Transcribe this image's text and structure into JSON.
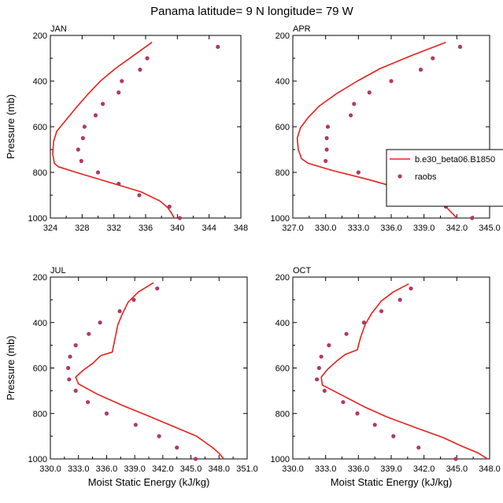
{
  "title": "Panama  latitude= 9 N longitude= 79 W",
  "colors": {
    "model": "#e8201c",
    "obs": "#b03a62",
    "frame": "#000000"
  },
  "legend": {
    "placement": "right of APR panel, overflowing figure edge",
    "entries": [
      {
        "label": "b.e30_beta06.B1850",
        "marker": "line",
        "color": "#e8201c"
      },
      {
        "label": "raobs",
        "marker": "dot",
        "color": "#b03a62"
      }
    ]
  },
  "chart_data": [
    {
      "type": "line",
      "title": "JAN",
      "xlabel": "",
      "ylabel": "Pressure (mb)",
      "xlim": [
        324,
        348
      ],
      "ylim": [
        1000,
        200
      ],
      "xticks": [
        324,
        328,
        332,
        336,
        340,
        344,
        348
      ],
      "xticklabels": [
        "324",
        "328",
        "332",
        "336",
        "340",
        "344",
        "348"
      ],
      "yticks": [
        200,
        400,
        600,
        800,
        1000
      ],
      "yticklabels": [
        "200",
        "400",
        "600",
        "800",
        "1000"
      ],
      "model": [
        [
          336.8,
          230
        ],
        [
          334.8,
          280
        ],
        [
          332.2,
          345
        ],
        [
          330.3,
          400
        ],
        [
          328.8,
          455
        ],
        [
          327.4,
          510
        ],
        [
          326.1,
          565
        ],
        [
          324.8,
          620
        ],
        [
          324.4,
          665
        ],
        [
          324.3,
          720
        ],
        [
          324.5,
          760
        ],
        [
          325.0,
          775
        ],
        [
          327.7,
          805
        ],
        [
          331.6,
          845
        ],
        [
          335.4,
          885
        ],
        [
          337.8,
          925
        ],
        [
          338.8,
          955
        ],
        [
          339.2,
          975
        ],
        [
          339.6,
          1000
        ]
      ],
      "obs": [
        [
          345.1,
          250
        ],
        [
          336.2,
          300
        ],
        [
          335.3,
          350
        ],
        [
          333.0,
          400
        ],
        [
          332.6,
          450
        ],
        [
          330.6,
          500
        ],
        [
          329.7,
          550
        ],
        [
          328.3,
          600
        ],
        [
          328.1,
          650
        ],
        [
          327.5,
          700
        ],
        [
          327.9,
          750
        ],
        [
          330.0,
          800
        ],
        [
          332.6,
          850
        ],
        [
          335.2,
          900
        ],
        [
          339.0,
          950
        ],
        [
          340.3,
          1000
        ]
      ]
    },
    {
      "type": "line",
      "title": "APR",
      "xlabel": "",
      "ylabel": "",
      "xlim": [
        327.0,
        345.0
      ],
      "ylim": [
        1000,
        200
      ],
      "xticks": [
        327,
        330,
        333,
        336,
        339,
        342,
        345
      ],
      "xticklabels": [
        "327.0",
        "330.0",
        "333.0",
        "336.0",
        "339.0",
        "342.0",
        "345.0"
      ],
      "yticks": [
        200,
        400,
        600,
        800,
        1000
      ],
      "yticklabels": [
        "200",
        "400",
        "600",
        "800",
        "1000"
      ],
      "model": [
        [
          341.0,
          230
        ],
        [
          338.0,
          285
        ],
        [
          335.0,
          345
        ],
        [
          332.9,
          400
        ],
        [
          331.0,
          455
        ],
        [
          329.4,
          510
        ],
        [
          328.4,
          560
        ],
        [
          327.7,
          605
        ],
        [
          327.4,
          650
        ],
        [
          327.5,
          700
        ],
        [
          327.8,
          740
        ],
        [
          328.4,
          760
        ],
        [
          330.5,
          790
        ],
        [
          333.8,
          830
        ],
        [
          336.8,
          870
        ],
        [
          339.3,
          910
        ],
        [
          341.0,
          950
        ],
        [
          341.5,
          975
        ],
        [
          342.0,
          1000
        ]
      ],
      "obs": [
        [
          342.3,
          250
        ],
        [
          339.8,
          300
        ],
        [
          338.7,
          350
        ],
        [
          336.0,
          400
        ],
        [
          334.0,
          450
        ],
        [
          332.6,
          500
        ],
        [
          332.3,
          550
        ],
        [
          330.2,
          600
        ],
        [
          330.1,
          650
        ],
        [
          330.1,
          700
        ],
        [
          330.0,
          750
        ],
        [
          333.0,
          800
        ],
        [
          335.8,
          850
        ],
        [
          338.3,
          900
        ],
        [
          341.0,
          950
        ],
        [
          343.4,
          1000
        ]
      ]
    },
    {
      "type": "line",
      "title": "JUL",
      "xlabel": "Moist Static Energy (kJ/kg)",
      "ylabel": "Pressure (mb)",
      "xlim": [
        330.0,
        351.0
      ],
      "ylim": [
        1000,
        200
      ],
      "xticks": [
        330,
        333,
        336,
        339,
        342,
        345,
        348,
        351
      ],
      "xticklabels": [
        "330.0",
        "333.0",
        "336.0",
        "339.0",
        "342.0",
        "345.0",
        "348.0",
        "351.0"
      ],
      "yticks": [
        200,
        400,
        600,
        800,
        1000
      ],
      "yticklabels": [
        "200",
        "400",
        "600",
        "800",
        "1000"
      ],
      "model": [
        [
          341.0,
          225
        ],
        [
          339.4,
          265
        ],
        [
          338.3,
          310
        ],
        [
          337.7,
          360
        ],
        [
          337.2,
          410
        ],
        [
          336.9,
          470
        ],
        [
          336.6,
          530
        ],
        [
          335.4,
          545
        ],
        [
          334.5,
          580
        ],
        [
          333.5,
          610
        ],
        [
          332.7,
          640
        ],
        [
          333.0,
          670
        ],
        [
          335.0,
          715
        ],
        [
          337.7,
          765
        ],
        [
          340.4,
          810
        ],
        [
          343.3,
          860
        ],
        [
          345.6,
          900
        ],
        [
          347.3,
          950
        ],
        [
          348.0,
          975
        ],
        [
          348.5,
          1000
        ]
      ],
      "obs": [
        [
          341.4,
          250
        ],
        [
          338.9,
          300
        ],
        [
          337.4,
          350
        ],
        [
          335.3,
          400
        ],
        [
          334.1,
          450
        ],
        [
          332.7,
          500
        ],
        [
          332.1,
          550
        ],
        [
          331.9,
          600
        ],
        [
          332.0,
          650
        ],
        [
          332.7,
          700
        ],
        [
          334.0,
          750
        ],
        [
          336.0,
          800
        ],
        [
          339.1,
          850
        ],
        [
          341.6,
          900
        ],
        [
          343.5,
          950
        ],
        [
          345.5,
          1000
        ]
      ]
    },
    {
      "type": "line",
      "title": "OCT",
      "xlabel": "Moist Static Energy (kJ/kg)",
      "ylabel": "",
      "xlim": [
        330.0,
        348.0
      ],
      "ylim": [
        1000,
        200
      ],
      "xticks": [
        330,
        333,
        336,
        339,
        342,
        345,
        348
      ],
      "xticklabels": [
        "330.0",
        "333.0",
        "336.0",
        "339.0",
        "342.0",
        "345.0",
        "348.0"
      ],
      "yticks": [
        200,
        400,
        600,
        800,
        1000
      ],
      "yticklabels": [
        "200",
        "400",
        "600",
        "800",
        "1000"
      ],
      "model": [
        [
          340.6,
          230
        ],
        [
          339.2,
          265
        ],
        [
          338.1,
          305
        ],
        [
          337.2,
          360
        ],
        [
          336.6,
          410
        ],
        [
          336.2,
          465
        ],
        [
          335.9,
          520
        ],
        [
          334.8,
          540
        ],
        [
          334.0,
          570
        ],
        [
          333.2,
          605
        ],
        [
          332.6,
          640
        ],
        [
          332.7,
          675
        ],
        [
          334.5,
          720
        ],
        [
          336.5,
          770
        ],
        [
          338.6,
          815
        ],
        [
          341.1,
          860
        ],
        [
          343.7,
          905
        ],
        [
          345.5,
          945
        ],
        [
          347.0,
          975
        ],
        [
          347.8,
          1000
        ]
      ],
      "obs": [
        [
          340.8,
          250
        ],
        [
          339.8,
          300
        ],
        [
          338.1,
          350
        ],
        [
          336.5,
          400
        ],
        [
          334.9,
          450
        ],
        [
          333.3,
          500
        ],
        [
          332.6,
          550
        ],
        [
          332.4,
          600
        ],
        [
          332.2,
          650
        ],
        [
          332.9,
          700
        ],
        [
          334.6,
          750
        ],
        [
          335.9,
          800
        ],
        [
          337.5,
          850
        ],
        [
          339.2,
          900
        ],
        [
          341.5,
          950
        ],
        [
          344.9,
          1000
        ]
      ]
    }
  ]
}
